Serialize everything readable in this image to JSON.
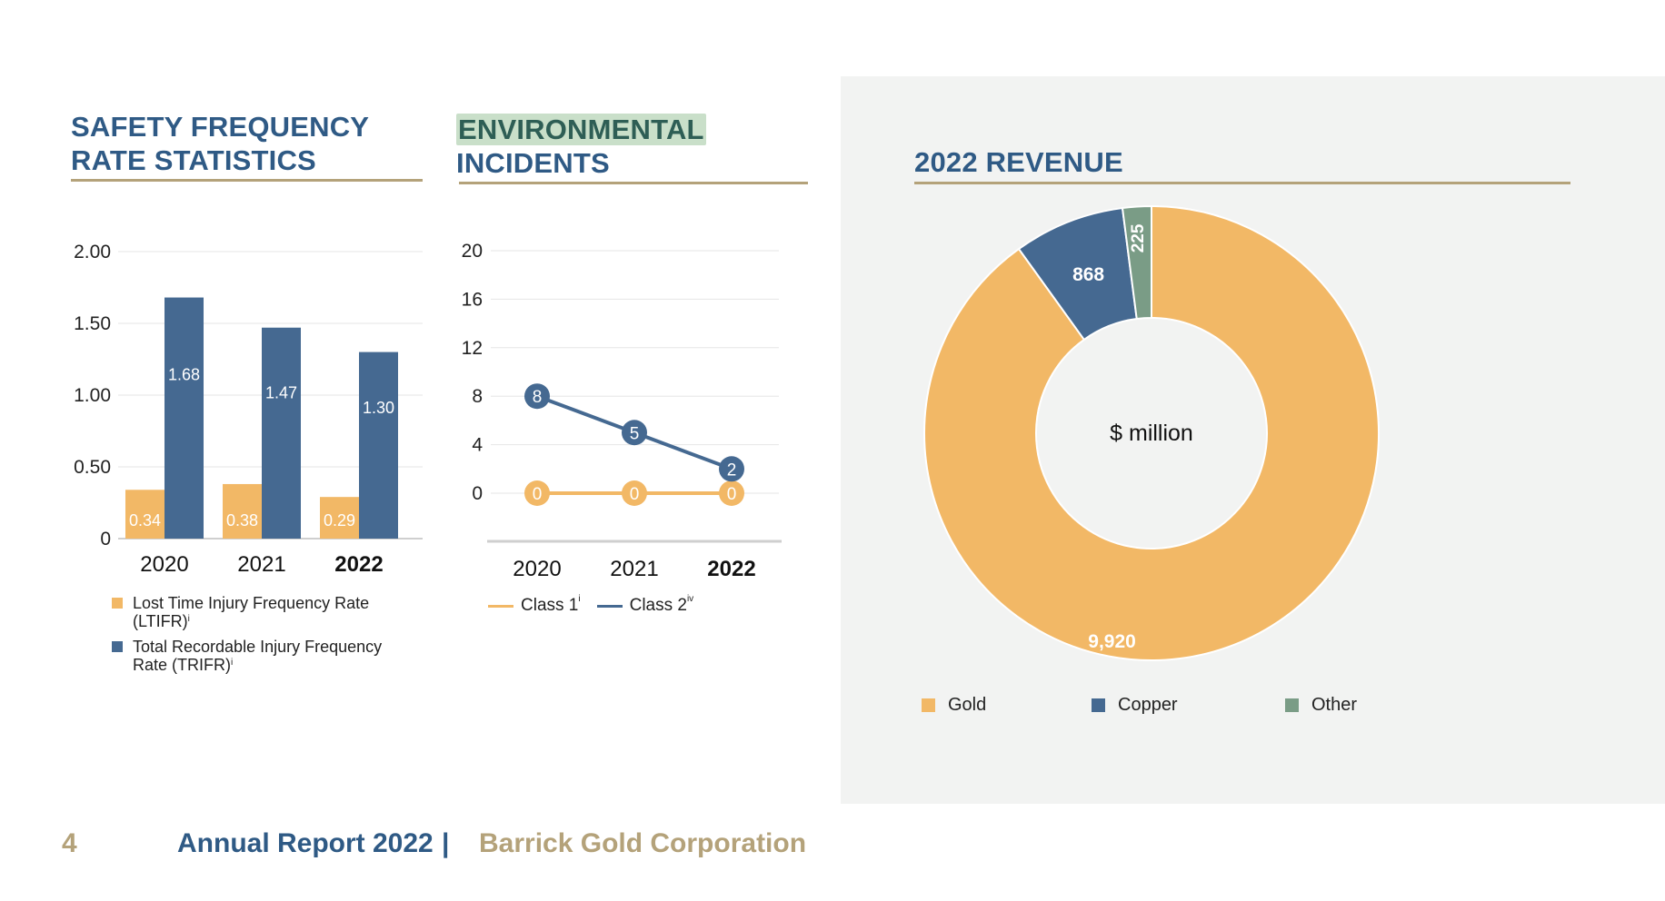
{
  "page": {
    "page_number": "4"
  },
  "footer": {
    "report": "Annual Report 2022",
    "separator": "|",
    "company": "Barrick Gold Corporation"
  },
  "colors": {
    "orange": "#f2b866",
    "blue": "#456991",
    "green": "#7a9c86",
    "navy": "#2f5a85",
    "gold": "#b4a27a"
  },
  "safety": {
    "title_line1": "SAFETY FREQUENCY",
    "title_line2": "RATE STATISTICS",
    "legend": {
      "ltifr": "Lost Time Injury Frequency Rate (LTIFR)",
      "ltifr_sup": "i",
      "trifr": "Total Recordable Injury Frequency Rate (TRIFR)",
      "trifr_sup": "i"
    }
  },
  "environmental": {
    "title_line1": "ENVIRONMENTAL",
    "title_line2": "INCIDENTS",
    "legend": {
      "class1": "Class 1",
      "class1_sup": "i",
      "class2": "Class 2",
      "class2_sup": "iv"
    }
  },
  "revenue": {
    "title": "2022 REVENUE",
    "center_label": "$ million",
    "legend": {
      "gold": "Gold",
      "copper": "Copper",
      "other": "Other"
    }
  },
  "chart_data": [
    {
      "type": "bar",
      "categories": [
        "2020",
        "2021",
        "2022"
      ],
      "highlight_category": "2022",
      "ylim": [
        0,
        2.0
      ],
      "yticks": [
        "0",
        "0.50",
        "1.00",
        "1.50",
        "2.00"
      ],
      "series": [
        {
          "name": "Lost Time Injury Frequency Rate (LTIFR)",
          "values": [
            0.34,
            0.38,
            0.29
          ],
          "labels": [
            "0.34",
            "0.38",
            "0.29"
          ],
          "color": "#f2b866"
        },
        {
          "name": "Total Recordable Injury Frequency Rate (TRIFR)",
          "values": [
            1.68,
            1.47,
            1.3
          ],
          "labels": [
            "1.68",
            "1.47",
            "1.30"
          ],
          "color": "#456991"
        }
      ],
      "grid": true
    },
    {
      "type": "line",
      "categories": [
        "2020",
        "2021",
        "2022"
      ],
      "highlight_category": "2022",
      "ylim": [
        0,
        20
      ],
      "yticks": [
        "0",
        "4",
        "8",
        "12",
        "16",
        "20"
      ],
      "series": [
        {
          "name": "Class 1",
          "values": [
            0,
            0,
            0
          ],
          "color": "#f2b866"
        },
        {
          "name": "Class 2",
          "values": [
            8,
            5,
            2
          ],
          "color": "#456991"
        }
      ],
      "grid": true
    },
    {
      "type": "pie",
      "donut": true,
      "slices": [
        {
          "name": "Gold",
          "value": 9920,
          "label": "9,920",
          "color": "#f2b866"
        },
        {
          "name": "Copper",
          "value": 868,
          "label": "868",
          "color": "#456991"
        },
        {
          "name": "Other",
          "value": 225,
          "label": "225",
          "color": "#7a9c86"
        }
      ]
    }
  ]
}
